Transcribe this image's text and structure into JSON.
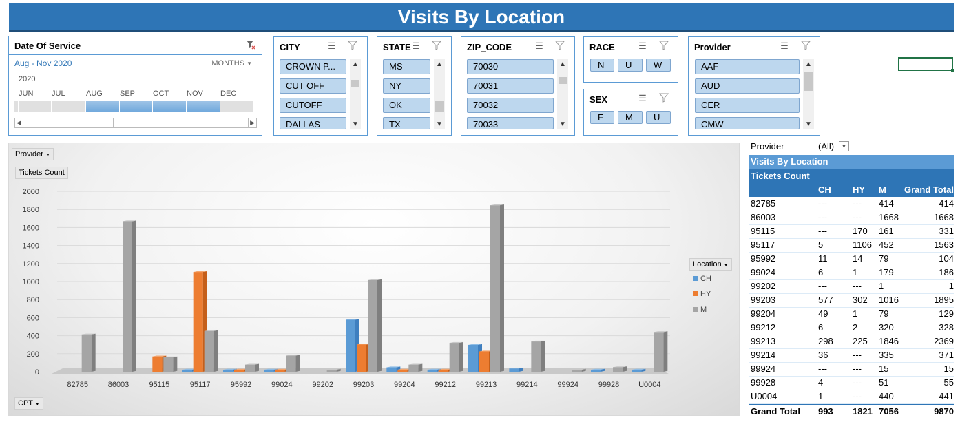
{
  "title": "Visits By Location",
  "timeline": {
    "header": "Date Of Service",
    "range": "Aug - Nov 2020",
    "level": "MONTHS",
    "year": "2020",
    "months": [
      "JUN",
      "JUL",
      "AUG",
      "SEP",
      "OCT",
      "NOV",
      "DEC"
    ],
    "selected_months": [
      "AUG",
      "SEP",
      "OCT",
      "NOV"
    ]
  },
  "slicers": {
    "city": {
      "header": "CITY",
      "items": [
        "CROWN P...",
        "CUT OFF",
        "CUTOFF",
        "DALLAS"
      ]
    },
    "state": {
      "header": "STATE",
      "items": [
        "MS",
        "NY",
        "OK",
        "TX"
      ]
    },
    "zip": {
      "header": "ZIP_CODE",
      "items": [
        "70030",
        "70031",
        "70032",
        "70033"
      ]
    },
    "race": {
      "header": "RACE",
      "items": [
        "N",
        "U",
        "W"
      ]
    },
    "sex": {
      "header": "SEX",
      "items": [
        "F",
        "M",
        "U"
      ]
    },
    "provider": {
      "header": "Provider",
      "items": [
        "AAF",
        "AUD",
        "CER",
        "CMW"
      ]
    }
  },
  "chart_field_buttons": {
    "provider": "Provider",
    "values": "Tickets Count",
    "axis": "CPT",
    "legend": "Location"
  },
  "chart_data": {
    "type": "bar",
    "categories": [
      "82785",
      "86003",
      "95115",
      "95117",
      "95992",
      "99024",
      "99202",
      "99203",
      "99204",
      "99212",
      "99213",
      "99214",
      "99924",
      "99928",
      "U0004"
    ],
    "series": [
      {
        "name": "CH",
        "color": "#5b9bd5",
        "values": [
          0,
          0,
          0,
          5,
          11,
          6,
          0,
          577,
          49,
          6,
          298,
          36,
          0,
          4,
          1
        ]
      },
      {
        "name": "HY",
        "color": "#ed7d31",
        "values": [
          0,
          0,
          170,
          1106,
          14,
          1,
          0,
          302,
          1,
          2,
          225,
          0,
          0,
          0,
          0
        ]
      },
      {
        "name": "M",
        "color": "#a5a5a5",
        "values": [
          414,
          1668,
          161,
          452,
          79,
          179,
          1,
          1016,
          79,
          320,
          1846,
          335,
          15,
          51,
          440
        ]
      }
    ],
    "y_ticks": [
      "0",
      "200",
      "400",
      "600",
      "800",
      "1000",
      "1200",
      "1400",
      "1600",
      "1800",
      "2000"
    ],
    "ylim": [
      0,
      2000
    ],
    "legend_position": "right"
  },
  "pivot": {
    "filter_label": "Provider",
    "filter_value": "(All)",
    "title": "Visits By Location",
    "subtitle": "Tickets Count",
    "columns": [
      "",
      "CH",
      "HY",
      "M",
      "Grand Total"
    ],
    "rows": [
      [
        "82785",
        "---",
        "---",
        "414",
        "414"
      ],
      [
        "86003",
        "---",
        "---",
        "1668",
        "1668"
      ],
      [
        "95115",
        "---",
        "170",
        "161",
        "331"
      ],
      [
        "95117",
        "5",
        "1106",
        "452",
        "1563"
      ],
      [
        "95992",
        "11",
        "14",
        "79",
        "104"
      ],
      [
        "99024",
        "6",
        "1",
        "179",
        "186"
      ],
      [
        "99202",
        "---",
        "---",
        "1",
        "1"
      ],
      [
        "99203",
        "577",
        "302",
        "1016",
        "1895"
      ],
      [
        "99204",
        "49",
        "1",
        "79",
        "129"
      ],
      [
        "99212",
        "6",
        "2",
        "320",
        "328"
      ],
      [
        "99213",
        "298",
        "225",
        "1846",
        "2369"
      ],
      [
        "99214",
        "36",
        "---",
        "335",
        "371"
      ],
      [
        "99924",
        "---",
        "---",
        "15",
        "15"
      ],
      [
        "99928",
        "4",
        "---",
        "51",
        "55"
      ],
      [
        "U0004",
        "1",
        "---",
        "440",
        "441"
      ]
    ],
    "total": [
      "Grand Total",
      "993",
      "1821",
      "7056",
      "9870"
    ]
  }
}
